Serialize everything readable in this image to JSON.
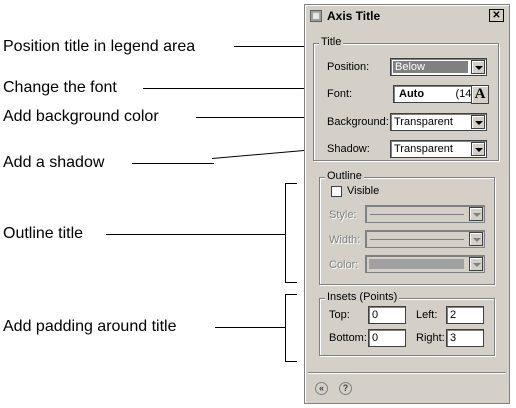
{
  "callouts": {
    "position": "Position title in legend area",
    "font": "Change the font",
    "background": "Add background color",
    "shadow": "Add a shadow",
    "outline": "Outline title",
    "padding": "Add padding around title"
  },
  "dialog": {
    "title": "Axis Title",
    "close_icon": "close-icon",
    "title_group": {
      "label": "Title",
      "position": {
        "label": "Position:",
        "value": "Below"
      },
      "font": {
        "label": "Font:",
        "name": "Auto",
        "size": "(14)",
        "button_glyph": "A"
      },
      "background": {
        "label": "Background:",
        "value": "Transparent"
      },
      "shadow": {
        "label": "Shadow:",
        "value": "Transparent"
      }
    },
    "outline_group": {
      "label": "Outline",
      "visible": {
        "label": "Visible",
        "checked": false
      },
      "style": {
        "label": "Style:"
      },
      "width": {
        "label": "Width:"
      },
      "color": {
        "label": "Color:"
      }
    },
    "insets_group": {
      "label": "Insets (Points)",
      "top": {
        "label": "Top:",
        "value": "0"
      },
      "left": {
        "label": "Left:",
        "value": "2"
      },
      "bottom": {
        "label": "Bottom:",
        "value": "0"
      },
      "right": {
        "label": "Right:",
        "value": "3"
      }
    },
    "footer": {
      "back_glyph": "«",
      "help_glyph": "?"
    }
  }
}
